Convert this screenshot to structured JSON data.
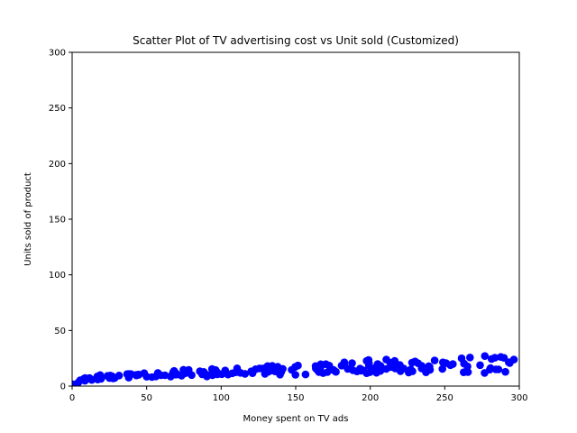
{
  "chart_data": {
    "type": "scatter",
    "title": "Scatter Plot of TV advertising cost vs Unit sold (Customized)",
    "xlabel": "Money spent on TV ads",
    "ylabel": "Units sold of product",
    "xlim": [
      0,
      300
    ],
    "ylim": [
      0,
      300
    ],
    "xticks": [
      0,
      50,
      100,
      150,
      200,
      250,
      300
    ],
    "yticks": [
      0,
      50,
      100,
      150,
      200,
      250,
      300
    ],
    "grid": false,
    "marker_color": "#0000ff",
    "points": [
      [
        0.7,
        1.6
      ],
      [
        4.1,
        3.2
      ],
      [
        5.4,
        5.3
      ],
      [
        7.3,
        5.5
      ],
      [
        7.8,
        6.6
      ],
      [
        8.4,
        5.7
      ],
      [
        8.6,
        4.8
      ],
      [
        8.7,
        7.2
      ],
      [
        11.7,
        7.3
      ],
      [
        13.1,
        5.6
      ],
      [
        13.2,
        5.6
      ],
      [
        16.9,
        8.7
      ],
      [
        17.2,
        5.9
      ],
      [
        17.9,
        8.0
      ],
      [
        18.7,
        6.7
      ],
      [
        18.8,
        9.9
      ],
      [
        19.4,
        6.6
      ],
      [
        19.6,
        7.6
      ],
      [
        23.8,
        9.2
      ],
      [
        25.0,
        8.5
      ],
      [
        25.1,
        7.2
      ],
      [
        25.6,
        9.5
      ],
      [
        26.8,
        8.8
      ],
      [
        27.5,
        6.9
      ],
      [
        28.6,
        7.3
      ],
      [
        31.5,
        9.5
      ],
      [
        36.9,
        10.8
      ],
      [
        38.0,
        7.6
      ],
      [
        38.2,
        10.9
      ],
      [
        39.5,
        10.8
      ],
      [
        43.0,
        10.1
      ],
      [
        43.1,
        9.6
      ],
      [
        44.5,
        10.4
      ],
      [
        44.7,
        10.1
      ],
      [
        48.3,
        11.6
      ],
      [
        50.0,
        8.4
      ],
      [
        53.5,
        8.1
      ],
      [
        56.2,
        8.7
      ],
      [
        57.5,
        11.8
      ],
      [
        59.6,
        9.7
      ],
      [
        62.3,
        9.7
      ],
      [
        66.1,
        8.6
      ],
      [
        66.9,
        9.7
      ],
      [
        67.8,
        12.5
      ],
      [
        68.4,
        13.6
      ],
      [
        69.0,
        11.3
      ],
      [
        69.2,
        10.3
      ],
      [
        70.6,
        10.5
      ],
      [
        73.4,
        9.4
      ],
      [
        74.7,
        14.7
      ],
      [
        75.1,
        11.3
      ],
      [
        75.3,
        12.6
      ],
      [
        76.3,
        12.0
      ],
      [
        76.4,
        11.8
      ],
      [
        78.2,
        14.6
      ],
      [
        80.2,
        9.9
      ],
      [
        85.7,
        13.3
      ],
      [
        87.2,
        10.6
      ],
      [
        88.3,
        12.7
      ],
      [
        89.7,
        10.6
      ],
      [
        90.4,
        8.7
      ],
      [
        93.9,
        15.3
      ],
      [
        94.2,
        9.7
      ],
      [
        95.7,
        11.3
      ],
      [
        96.2,
        14.4
      ],
      [
        97.2,
        12.6
      ],
      [
        97.5,
        10.6
      ],
      [
        100.4,
        10.7
      ],
      [
        102.7,
        14.0
      ],
      [
        104.6,
        10.4
      ],
      [
        107.4,
        11.5
      ],
      [
        109.8,
        12.4
      ],
      [
        110.7,
        16.0
      ],
      [
        112.9,
        11.9
      ],
      [
        116.0,
        11.0
      ],
      [
        120.2,
        13.2
      ],
      [
        120.5,
        13.2
      ],
      [
        121.0,
        11.6
      ],
      [
        123.1,
        15.2
      ],
      [
        125.7,
        15.9
      ],
      [
        128.0,
        15.9
      ],
      [
        129.4,
        11.0
      ],
      [
        131.1,
        18.0
      ],
      [
        131.7,
        12.9
      ],
      [
        134.3,
        14.0
      ],
      [
        136.2,
        13.2
      ],
      [
        137.9,
        17.4
      ],
      [
        139.2,
        12.2
      ],
      [
        139.3,
        15.0
      ],
      [
        139.5,
        10.3
      ],
      [
        140.3,
        12.9
      ],
      [
        141.3,
        15.5
      ],
      [
        147.3,
        14.6
      ],
      [
        149.7,
        17.3
      ],
      [
        149.8,
        10.1
      ],
      [
        151.5,
        18.5
      ],
      [
        156.6,
        10.5
      ],
      [
        163.3,
        18.0
      ],
      [
        163.5,
        15.9
      ],
      [
        164.5,
        14.5
      ],
      [
        165.6,
        12.6
      ],
      [
        166.8,
        19.6
      ],
      [
        168.4,
        11.7
      ],
      [
        170.2,
        19.7
      ],
      [
        171.3,
        12.6
      ],
      [
        172.5,
        18.4
      ],
      [
        175.1,
        14.7
      ],
      [
        175.7,
        14.1
      ],
      [
        177.0,
        12.8
      ],
      [
        180.8,
        18.4
      ],
      [
        182.6,
        21.3
      ],
      [
        184.9,
        15.5
      ],
      [
        187.8,
        20.6
      ],
      [
        188.4,
        14.3
      ],
      [
        191.1,
        13.2
      ],
      [
        193.2,
        15.8
      ],
      [
        193.7,
        13.9
      ],
      [
        195.4,
        14.2
      ],
      [
        197.6,
        11.6
      ],
      [
        199.1,
        18.6
      ],
      [
        199.8,
        12.5
      ],
      [
        202.5,
        15.2
      ],
      [
        204.1,
        17.3
      ],
      [
        205.0,
        19.8
      ],
      [
        206.8,
        13.6
      ],
      [
        206.9,
        18.2
      ],
      [
        210.7,
        15.5
      ],
      [
        213.4,
        21.1
      ],
      [
        213.5,
        17.0
      ],
      [
        215.4,
        17.1
      ],
      [
        216.4,
        22.6
      ],
      [
        216.8,
        15.9
      ],
      [
        218.4,
        18.6
      ],
      [
        219.8,
        19.0
      ],
      [
        220.3,
        13.4
      ],
      [
        220.5,
        15.4
      ],
      [
        222.4,
        15.9
      ],
      [
        225.8,
        12.2
      ],
      [
        227.2,
        14.9
      ],
      [
        228.0,
        21.1
      ],
      [
        228.3,
        13.3
      ],
      [
        230.1,
        22.1
      ],
      [
        232.1,
        20.5
      ],
      [
        234.5,
        15.8
      ],
      [
        237.4,
        12.4
      ],
      [
        239.3,
        17.9
      ],
      [
        239.8,
        17.3
      ],
      [
        240.1,
        14.6
      ],
      [
        243.2,
        23.0
      ],
      [
        248.4,
        15.4
      ],
      [
        248.8,
        21.3
      ],
      [
        250.9,
        20.6
      ],
      [
        253.8,
        18.8
      ],
      [
        255.4,
        19.8
      ],
      [
        261.3,
        25.0
      ],
      [
        262.7,
        12.4
      ],
      [
        262.9,
        20.2
      ],
      [
        265.2,
        17.7
      ],
      [
        265.6,
        12.6
      ],
      [
        266.9,
        25.7
      ],
      [
        273.7,
        18.8
      ],
      [
        276.7,
        11.8
      ],
      [
        276.9,
        27.0
      ],
      [
        280.2,
        14.8
      ],
      [
        280.7,
        16.1
      ],
      [
        281.4,
        24.4
      ],
      [
        283.6,
        25.5
      ],
      [
        284.3,
        15.0
      ],
      [
        286.0,
        15.0
      ],
      [
        287.6,
        26.2
      ],
      [
        289.7,
        25.4
      ],
      [
        290.7,
        12.8
      ],
      [
        292.9,
        21.4
      ],
      [
        293.6,
        20.7
      ],
      [
        296.4,
        23.8
      ],
      [
        18.7,
        8.1
      ],
      [
        198.9,
        23.4
      ],
      [
        199.1,
        20.7
      ],
      [
        204.2,
        12.0
      ],
      [
        210.8,
        23.8
      ],
      [
        214.7,
        17.4
      ],
      [
        215.9,
        21.1
      ],
      [
        197.6,
        22.6
      ],
      [
        234.5,
        18.2
      ],
      [
        182.6,
        19.9
      ],
      [
        166.8,
        17.4
      ],
      [
        134.3,
        18.2
      ],
      [
        94.2,
        11.7
      ],
      [
        69.2,
        12.1
      ]
    ]
  }
}
